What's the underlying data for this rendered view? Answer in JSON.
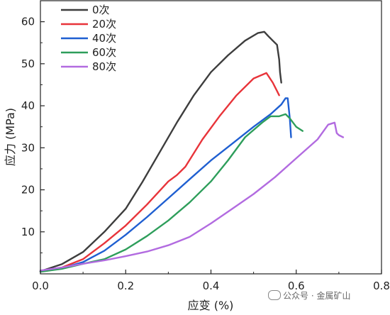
{
  "chart_data": {
    "type": "line",
    "xlabel": "应变 (%)",
    "ylabel": "应力 (MPa)",
    "xlim": [
      0.0,
      0.8
    ],
    "ylim": [
      0,
      65
    ],
    "xticks": [
      0.0,
      0.2,
      0.4,
      0.6,
      0.8
    ],
    "xtick_labels": [
      "0.0",
      "0.2",
      "0.4",
      "0.6",
      "0.8"
    ],
    "yticks": [
      10,
      20,
      30,
      40,
      50,
      60
    ],
    "ytick_labels": [
      "10",
      "20",
      "30",
      "40",
      "50",
      "60"
    ],
    "grid": false,
    "legend_position": "top-left",
    "series": [
      {
        "name": "0次",
        "color": "#3d3d3d",
        "x": [
          0.0,
          0.05,
          0.1,
          0.15,
          0.2,
          0.24,
          0.28,
          0.32,
          0.36,
          0.4,
          0.44,
          0.48,
          0.51,
          0.525,
          0.535,
          0.545,
          0.555,
          0.56,
          0.562,
          0.565
        ],
        "y": [
          0.6,
          2.3,
          5.2,
          10.0,
          15.5,
          22.0,
          29.0,
          36.0,
          42.5,
          48.0,
          52.0,
          55.5,
          57.3,
          57.6,
          56.5,
          55.5,
          54.5,
          51.0,
          48.0,
          45.5
        ]
      },
      {
        "name": "20次",
        "color": "#e8343a",
        "x": [
          0.0,
          0.05,
          0.1,
          0.15,
          0.2,
          0.25,
          0.3,
          0.32,
          0.34,
          0.38,
          0.42,
          0.46,
          0.5,
          0.53,
          0.545,
          0.55,
          0.555,
          0.56
        ],
        "y": [
          0.6,
          1.5,
          3.5,
          7.3,
          11.5,
          16.5,
          22.0,
          23.5,
          25.5,
          32.0,
          37.5,
          42.5,
          46.5,
          47.8,
          45.5,
          44.5,
          43.5,
          42.5
        ]
      },
      {
        "name": "40次",
        "color": "#1f5fd1",
        "x": [
          0.0,
          0.05,
          0.1,
          0.15,
          0.2,
          0.25,
          0.3,
          0.35,
          0.4,
          0.45,
          0.5,
          0.54,
          0.565,
          0.575,
          0.58,
          0.585,
          0.588
        ],
        "y": [
          0.6,
          1.3,
          2.8,
          5.5,
          9.3,
          13.5,
          18.0,
          22.5,
          27.0,
          31.0,
          35.0,
          38.0,
          40.3,
          41.8,
          41.8,
          37.0,
          32.5
        ]
      },
      {
        "name": "60次",
        "color": "#2e9e5b",
        "x": [
          0.0,
          0.05,
          0.1,
          0.15,
          0.2,
          0.25,
          0.3,
          0.35,
          0.4,
          0.44,
          0.48,
          0.52,
          0.54,
          0.56,
          0.575,
          0.585,
          0.6,
          0.615
        ],
        "y": [
          0.5,
          1.2,
          2.4,
          3.5,
          5.8,
          9.0,
          12.7,
          17.0,
          22.0,
          27.0,
          32.5,
          36.0,
          37.5,
          37.5,
          38.0,
          37.0,
          35.0,
          34.0
        ]
      },
      {
        "name": "80次",
        "color": "#b26be0",
        "x": [
          0.0,
          0.05,
          0.1,
          0.15,
          0.2,
          0.25,
          0.3,
          0.35,
          0.4,
          0.45,
          0.5,
          0.55,
          0.6,
          0.65,
          0.675,
          0.69,
          0.695,
          0.7,
          0.71
        ],
        "y": [
          0.8,
          1.5,
          2.4,
          3.2,
          4.2,
          5.3,
          6.8,
          8.8,
          12.0,
          15.5,
          19.0,
          23.0,
          27.5,
          32.0,
          35.5,
          36.0,
          33.5,
          33.0,
          32.5
        ]
      }
    ]
  },
  "watermark": {
    "text": "公众号 · 金属矿山"
  }
}
